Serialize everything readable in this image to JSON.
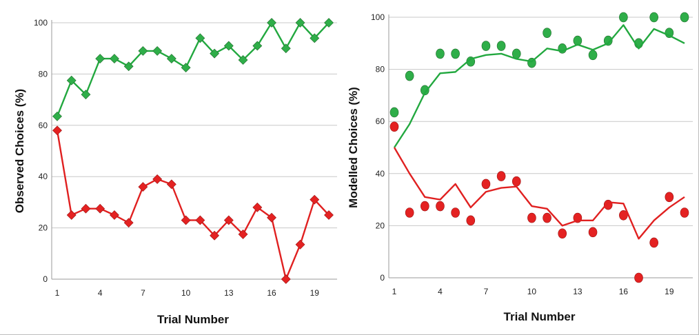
{
  "colors": {
    "green": "#22a83f",
    "green_marker": "#2fae49",
    "red": "#e02020",
    "red_marker": "#e42222",
    "grid": "#c8c8c8",
    "axis": "#9a9a9a"
  },
  "chart_data": [
    {
      "type": "line",
      "ylabel": "Observed Choices (%)",
      "xlabel": "Trial Number",
      "ylim": [
        0,
        100
      ],
      "yticks": [
        "0",
        "20",
        "40",
        "60",
        "80",
        "100"
      ],
      "xlim": [
        1,
        20
      ],
      "xticks": [
        "1",
        "4",
        "7",
        "10",
        "13",
        "16",
        "19"
      ],
      "x": [
        1,
        2,
        3,
        4,
        5,
        6,
        7,
        8,
        9,
        10,
        11,
        12,
        13,
        14,
        15,
        16,
        17,
        18,
        19,
        20
      ],
      "grid": true,
      "series": [
        {
          "marker": "diamond",
          "color": "green",
          "values": [
            63.5,
            77.5,
            72,
            86,
            86,
            83,
            89,
            89,
            86,
            82.5,
            94,
            88,
            91,
            85.5,
            91,
            100,
            90,
            100,
            94,
            100
          ]
        },
        {
          "marker": "diamond",
          "color": "red",
          "values": [
            58,
            25,
            27.5,
            27.5,
            25,
            22,
            36,
            39,
            37,
            23,
            23,
            17,
            23,
            17.5,
            28,
            24,
            0,
            13.5,
            31,
            25
          ]
        }
      ]
    },
    {
      "type": "scatter",
      "ylabel": "Modelled Choices (%)",
      "xlabel": "Trial Number",
      "ylim": [
        0,
        100
      ],
      "yticks": [
        "0",
        "20",
        "40",
        "60",
        "80",
        "100"
      ],
      "xlim": [
        1,
        20
      ],
      "xticks": [
        "1",
        "4",
        "7",
        "10",
        "13",
        "16",
        "19"
      ],
      "x": [
        1,
        2,
        3,
        4,
        5,
        6,
        7,
        8,
        9,
        10,
        11,
        12,
        13,
        14,
        15,
        16,
        17,
        18,
        19,
        20
      ],
      "grid": true,
      "series": [
        {
          "kind": "points",
          "color": "green",
          "values": [
            63.5,
            77.5,
            72,
            86,
            86,
            83,
            89,
            89,
            86,
            82.5,
            94,
            88,
            91,
            85.5,
            91,
            100,
            90,
            100,
            94,
            100
          ]
        },
        {
          "kind": "line",
          "color": "green",
          "values": [
            50,
            59,
            71,
            78.5,
            79,
            84,
            85.5,
            86,
            84,
            83,
            88,
            87,
            89.5,
            87.5,
            90,
            97,
            88,
            95.5,
            93,
            90
          ]
        },
        {
          "kind": "points",
          "color": "red",
          "values": [
            58,
            25,
            27.5,
            27.5,
            25,
            22,
            36,
            39,
            37,
            23,
            23,
            17,
            23,
            17.5,
            28,
            24,
            0,
            13.5,
            31,
            25
          ]
        },
        {
          "kind": "line",
          "color": "red",
          "values": [
            50,
            40,
            31,
            30,
            36,
            27,
            33,
            34.5,
            35,
            27.5,
            26.5,
            20,
            22,
            22,
            29,
            28.5,
            15,
            22,
            27,
            31
          ]
        }
      ]
    }
  ]
}
